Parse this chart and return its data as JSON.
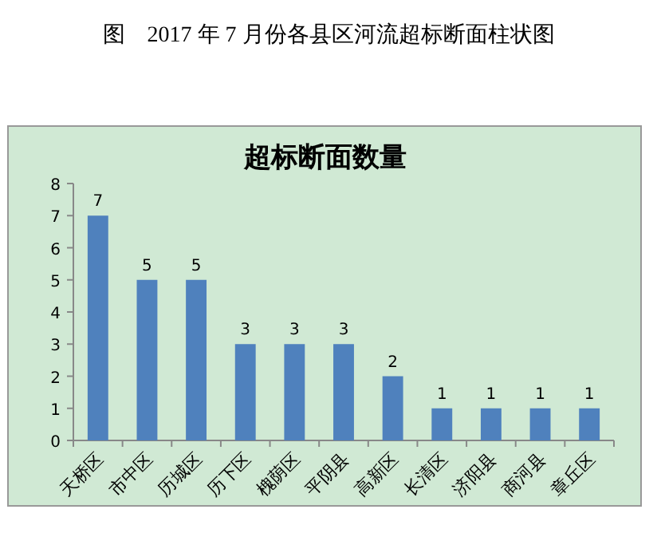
{
  "chart_data": {
    "type": "bar",
    "title": "图　2017 年 7 月份各县区河流超标断面柱状图",
    "subtitle": "超标断面数量",
    "categories": [
      "天桥区",
      "市中区",
      "历城区",
      "历下区",
      "槐荫区",
      "平阴县",
      "高新区",
      "长清区",
      "济阳县",
      "商河县",
      "章丘区"
    ],
    "values": [
      7,
      5,
      5,
      3,
      3,
      3,
      2,
      1,
      1,
      1,
      1
    ],
    "color": "#4f81bd",
    "ylim": [
      0,
      8
    ],
    "yticks": [
      0,
      1,
      2,
      3,
      4,
      5,
      6,
      7,
      8
    ],
    "grid": false,
    "data_labels": true
  }
}
